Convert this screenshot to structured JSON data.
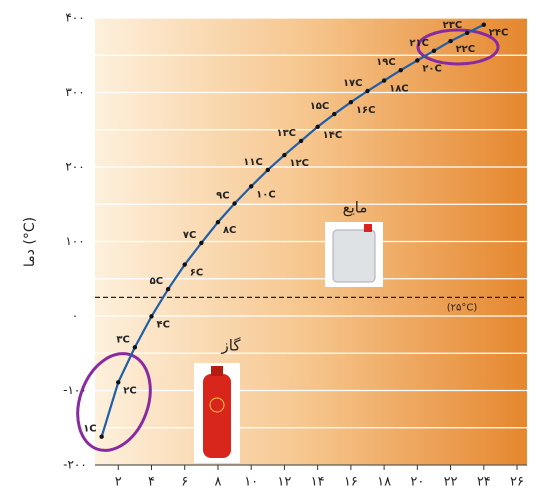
{
  "chart_data": {
    "type": "line",
    "y_label": "دما (°C)",
    "x": [
      1,
      2,
      3,
      4,
      5,
      6,
      7,
      8,
      9,
      10,
      11,
      12,
      13,
      14,
      15,
      16,
      17,
      18,
      19,
      20,
      21,
      22,
      23,
      24
    ],
    "series": [
      {
        "color": "#1f5fa8",
        "values": [
          -162,
          -89,
          -42,
          -0.5,
          36,
          69,
          98,
          126,
          151,
          174,
          196,
          216,
          235,
          254,
          271,
          287,
          302,
          316,
          330,
          343,
          356,
          369,
          380,
          391
        ]
      }
    ],
    "point_labels": [
      "۱C",
      "۲C",
      "۳C",
      "۴C",
      "۵C",
      "۶C",
      "۷C",
      "۸C",
      "۹C",
      "۱۰C",
      "۱۱C",
      "۱۲C",
      "۱۳C",
      "۱۴C",
      "۱۵C",
      "۱۶C",
      "۱۷C",
      "۱۸C",
      "۱۹C",
      "۲۰C",
      "۲۱C",
      "۲۲C",
      "۲۳C",
      "۲۴C"
    ],
    "xlim": [
      0.6,
      26.6
    ],
    "ylim": [
      -200,
      400
    ],
    "xticks": [
      {
        "value": 2,
        "label": "۲"
      },
      {
        "value": 4,
        "label": "۴"
      },
      {
        "value": 6,
        "label": "۶"
      },
      {
        "value": 8,
        "label": "۸"
      },
      {
        "value": 10,
        "label": "۱۰"
      },
      {
        "value": 12,
        "label": "۱۲"
      },
      {
        "value": 14,
        "label": "۱۴"
      },
      {
        "value": 16,
        "label": "۱۶"
      },
      {
        "value": 18,
        "label": "۱۸"
      },
      {
        "value": 20,
        "label": "۲۰"
      },
      {
        "value": 22,
        "label": "۲۲"
      },
      {
        "value": 24,
        "label": "۲۴"
      },
      {
        "value": 26,
        "label": "۲۶"
      }
    ],
    "yticks": [
      {
        "value": -200,
        "label": "-۲۰۰"
      },
      {
        "value": -100,
        "label": "-۱۰۰"
      },
      {
        "value": 0,
        "label": "۰"
      },
      {
        "value": 100,
        "label": "۱۰۰"
      },
      {
        "value": 200,
        "label": "۲۰۰"
      },
      {
        "value": 300,
        "label": "۳۰۰"
      },
      {
        "value": 400,
        "label": "۴۰۰"
      }
    ],
    "minor_grid": [
      -150,
      -50,
      50,
      150,
      250,
      350
    ],
    "grid": true,
    "reference_line": {
      "value": 25,
      "label": "(۲۵°C)"
    },
    "annotations": {
      "gas": "گاز",
      "liquid": "مایع"
    }
  }
}
